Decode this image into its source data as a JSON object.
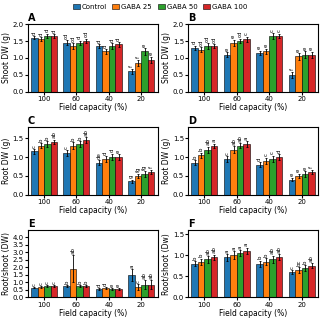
{
  "chart_data": [
    {
      "type": "bar",
      "title": "A",
      "x_label": "Field capacity (%)",
      "y_label": "Shoot DW (g)",
      "categories": [
        "100",
        "60",
        "40",
        "20"
      ],
      "ylim": [
        0.0,
        2.0
      ],
      "yticks": [
        0.0,
        0.5,
        1.0,
        1.5,
        2.0
      ],
      "series": [
        {
          "name": "Control",
          "values": [
            1.6,
            1.45,
            1.35,
            0.6
          ],
          "errors": [
            0.05,
            0.07,
            0.06,
            0.08
          ],
          "annotations": [
            "d",
            "cd",
            "d",
            "f"
          ]
        },
        {
          "name": "GABA 25",
          "values": [
            1.55,
            1.35,
            1.2,
            0.85
          ],
          "errors": [
            0.06,
            0.08,
            0.07,
            0.1
          ],
          "annotations": [
            "d",
            "cd",
            "d",
            "f"
          ]
        },
        {
          "name": "GABA 50",
          "values": [
            1.65,
            1.45,
            1.35,
            1.2
          ],
          "errors": [
            0.07,
            0.06,
            0.08,
            0.1
          ],
          "annotations": [
            "d",
            "d",
            "d",
            "e"
          ]
        },
        {
          "name": "GABA 100",
          "values": [
            1.65,
            1.5,
            1.4,
            0.95
          ],
          "errors": [
            0.05,
            0.07,
            0.06,
            0.09
          ],
          "annotations": [
            "d",
            "cd",
            "d",
            "e"
          ]
        }
      ]
    },
    {
      "type": "bar",
      "title": "B",
      "x_label": "Field capacity (%)",
      "y_label": "Shoot DW (g)",
      "categories": [
        "100",
        "60",
        "40",
        "20"
      ],
      "ylim": [
        0.0,
        2.0
      ],
      "yticks": [
        0.0,
        0.5,
        1.0,
        1.5,
        2.0
      ],
      "legend": "upper center",
      "series": [
        {
          "name": "Control",
          "values": [
            1.3,
            1.1,
            1.15,
            0.5
          ],
          "errors": [
            0.06,
            0.08,
            0.07,
            0.09
          ],
          "annotations": [
            "d",
            "e",
            "e",
            "f"
          ]
        },
        {
          "name": "GABA 25",
          "values": [
            1.25,
            1.45,
            1.2,
            1.05
          ],
          "errors": [
            0.07,
            0.09,
            0.08,
            0.1
          ],
          "annotations": [
            "cd",
            "e",
            "e",
            "e"
          ]
        },
        {
          "name": "GABA 50",
          "values": [
            1.35,
            1.5,
            1.65,
            1.1
          ],
          "errors": [
            0.08,
            0.07,
            0.09,
            0.1
          ],
          "annotations": [
            "cd",
            "cd",
            "c",
            "e"
          ]
        },
        {
          "name": "GABA 100",
          "values": [
            1.35,
            1.55,
            1.65,
            1.1
          ],
          "errors": [
            0.06,
            0.08,
            0.07,
            0.09
          ],
          "annotations": [
            "cd",
            "c",
            "c",
            "e"
          ]
        }
      ]
    },
    {
      "type": "bar",
      "title": "C",
      "x_label": "Field capacity (%)",
      "y_label": "Root DW (g)",
      "categories": [
        "100",
        "60",
        "40",
        "20"
      ],
      "ylim": [
        0.0,
        1.8
      ],
      "yticks": [
        0.0,
        0.5,
        1.0,
        1.5
      ],
      "series": [
        {
          "name": "Control",
          "values": [
            1.15,
            1.1,
            0.85,
            0.35
          ],
          "errors": [
            0.06,
            0.08,
            0.07,
            0.05
          ],
          "annotations": [
            "c",
            "c",
            "de",
            "g"
          ]
        },
        {
          "name": "GABA 25",
          "values": [
            1.3,
            1.3,
            0.95,
            0.5
          ],
          "errors": [
            0.07,
            0.09,
            0.08,
            0.06
          ],
          "annotations": [
            "b",
            "b",
            "d",
            "fg"
          ]
        },
        {
          "name": "GABA 50",
          "values": [
            1.35,
            1.35,
            1.0,
            0.55
          ],
          "errors": [
            0.08,
            0.07,
            0.09,
            0.07
          ],
          "annotations": [
            "b",
            "b",
            "d",
            "fg"
          ]
        },
        {
          "name": "GABA 100",
          "values": [
            1.4,
            1.45,
            1.0,
            0.6
          ],
          "errors": [
            0.06,
            0.08,
            0.07,
            0.06
          ],
          "annotations": [
            "ab",
            "ab",
            "e",
            "f"
          ]
        }
      ]
    },
    {
      "type": "bar",
      "title": "D",
      "x_label": "Field capacity (%)",
      "y_label": "Root DW (g)",
      "categories": [
        "100",
        "60",
        "40",
        "20"
      ],
      "ylim": [
        0.0,
        1.8
      ],
      "yticks": [
        0.0,
        0.5,
        1.0,
        1.5
      ],
      "series": [
        {
          "name": "Control",
          "values": [
            0.85,
            0.95,
            0.8,
            0.4
          ],
          "errors": [
            0.06,
            0.08,
            0.07,
            0.05
          ],
          "annotations": [
            "b",
            "c",
            "d",
            "e"
          ]
        },
        {
          "name": "GABA 25",
          "values": [
            1.05,
            1.2,
            0.9,
            0.5
          ],
          "errors": [
            0.07,
            0.09,
            0.08,
            0.06
          ],
          "annotations": [
            "b",
            "ab",
            "c",
            "e"
          ]
        },
        {
          "name": "GABA 50",
          "values": [
            1.2,
            1.3,
            0.95,
            0.55
          ],
          "errors": [
            0.08,
            0.07,
            0.09,
            0.07
          ],
          "annotations": [
            "ab",
            "ab",
            "c",
            "e"
          ]
        },
        {
          "name": "GABA 100",
          "values": [
            1.3,
            1.35,
            1.0,
            0.6
          ],
          "errors": [
            0.06,
            0.08,
            0.07,
            0.06
          ],
          "annotations": [
            "a",
            "a",
            "d",
            "f"
          ]
        }
      ]
    },
    {
      "type": "bar",
      "title": "E",
      "x_label": "Field capacity (%)",
      "y_label": "Root/shoot (DW)",
      "categories": [
        "100",
        "60",
        "40",
        "20"
      ],
      "ylim": [
        0.0,
        4.5
      ],
      "yticks": [
        0.0,
        0.5,
        1.0,
        1.5,
        2.0,
        2.5,
        3.0,
        3.5,
        4.0
      ],
      "series": [
        {
          "name": "Control",
          "values": [
            0.65,
            0.75,
            0.55,
            1.5
          ],
          "errors": [
            0.05,
            0.07,
            0.06,
            0.4
          ],
          "annotations": [
            "c",
            "b",
            "d",
            "a"
          ]
        },
        {
          "name": "GABA 25",
          "values": [
            0.7,
            1.9,
            0.6,
            0.7
          ],
          "errors": [
            0.06,
            0.9,
            0.07,
            0.2
          ],
          "annotations": [
            "c",
            "ab",
            "d",
            "c"
          ]
        },
        {
          "name": "GABA 50",
          "values": [
            0.75,
            0.75,
            0.55,
            0.85
          ],
          "errors": [
            0.07,
            0.08,
            0.06,
            0.3
          ],
          "annotations": [
            "c",
            "b",
            "e",
            "ab"
          ]
        },
        {
          "name": "GABA 100",
          "values": [
            0.75,
            0.75,
            0.55,
            0.85
          ],
          "errors": [
            0.05,
            0.08,
            0.06,
            0.3
          ],
          "annotations": [
            "c",
            "b",
            "e",
            "ab"
          ]
        }
      ]
    },
    {
      "type": "bar",
      "title": "F",
      "x_label": "Field capacity (%)",
      "y_label": "Root/shoot (Dw)",
      "categories": [
        "100",
        "60",
        "40",
        "20"
      ],
      "ylim": [
        0.0,
        1.6
      ],
      "yticks": [
        0.0,
        0.5,
        1.0,
        1.5
      ],
      "series": [
        {
          "name": "Control",
          "values": [
            0.8,
            0.95,
            0.8,
            0.6
          ],
          "errors": [
            0.06,
            0.08,
            0.07,
            0.05
          ],
          "annotations": [
            "b",
            "a",
            "b",
            "c"
          ]
        },
        {
          "name": "GABA 25",
          "values": [
            0.85,
            1.0,
            0.85,
            0.65
          ],
          "errors": [
            0.07,
            0.09,
            0.08,
            0.06
          ],
          "annotations": [
            "b",
            "a",
            "b",
            "bc"
          ]
        },
        {
          "name": "GABA 50",
          "values": [
            0.9,
            1.05,
            0.9,
            0.7
          ],
          "errors": [
            0.08,
            0.07,
            0.09,
            0.07
          ],
          "annotations": [
            "ab",
            "a",
            "ab",
            "b"
          ]
        },
        {
          "name": "GABA 100",
          "values": [
            0.95,
            1.1,
            0.95,
            0.75
          ],
          "errors": [
            0.06,
            0.08,
            0.07,
            0.06
          ],
          "annotations": [
            "ab",
            "a",
            "ab",
            "ab"
          ]
        }
      ]
    }
  ]
}
